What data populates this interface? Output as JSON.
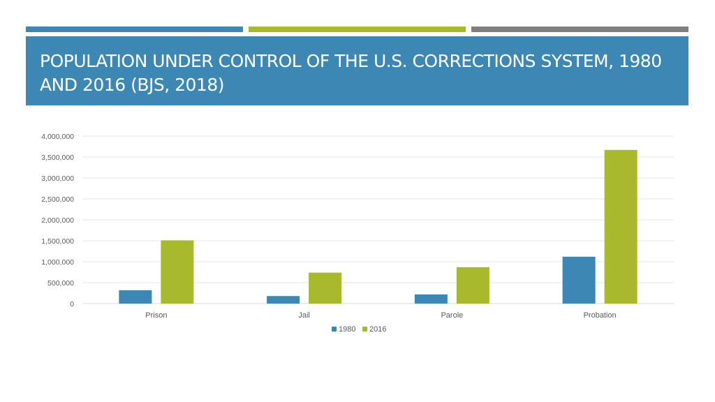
{
  "slide": {
    "title": "POPULATION UNDER CONTROL OF THE U.S. CORRECTIONS SYSTEM, 1980 AND 2016 (BJS, 2018)",
    "accent_colors": [
      "#3d87b4",
      "#a8b92c",
      "#7f7f7f"
    ],
    "title_band_color": "#3d87b4"
  },
  "chart_data": {
    "type": "bar",
    "title": "",
    "xlabel": "",
    "ylabel": "",
    "categories": [
      "Prison",
      "Jail",
      "Parole",
      "Probation"
    ],
    "series": [
      {
        "name": "1980",
        "color": "#3d87b4",
        "values": [
          320000,
          180000,
          220000,
          1120000
        ]
      },
      {
        "name": "2016",
        "color": "#a8b92c",
        "values": [
          1510000,
          740000,
          870000,
          3670000
        ]
      }
    ],
    "ylim": [
      0,
      4000000
    ],
    "yticks": [
      0,
      500000,
      1000000,
      1500000,
      2000000,
      2500000,
      3000000,
      3500000,
      4000000
    ],
    "ytick_labels": [
      "0",
      "500,000",
      "1,000,000",
      "1,500,000",
      "2,000,000",
      "2,500,000",
      "3,000,000",
      "3,500,000",
      "4,000,000"
    ],
    "grid": true,
    "legend_position": "bottom-center"
  }
}
